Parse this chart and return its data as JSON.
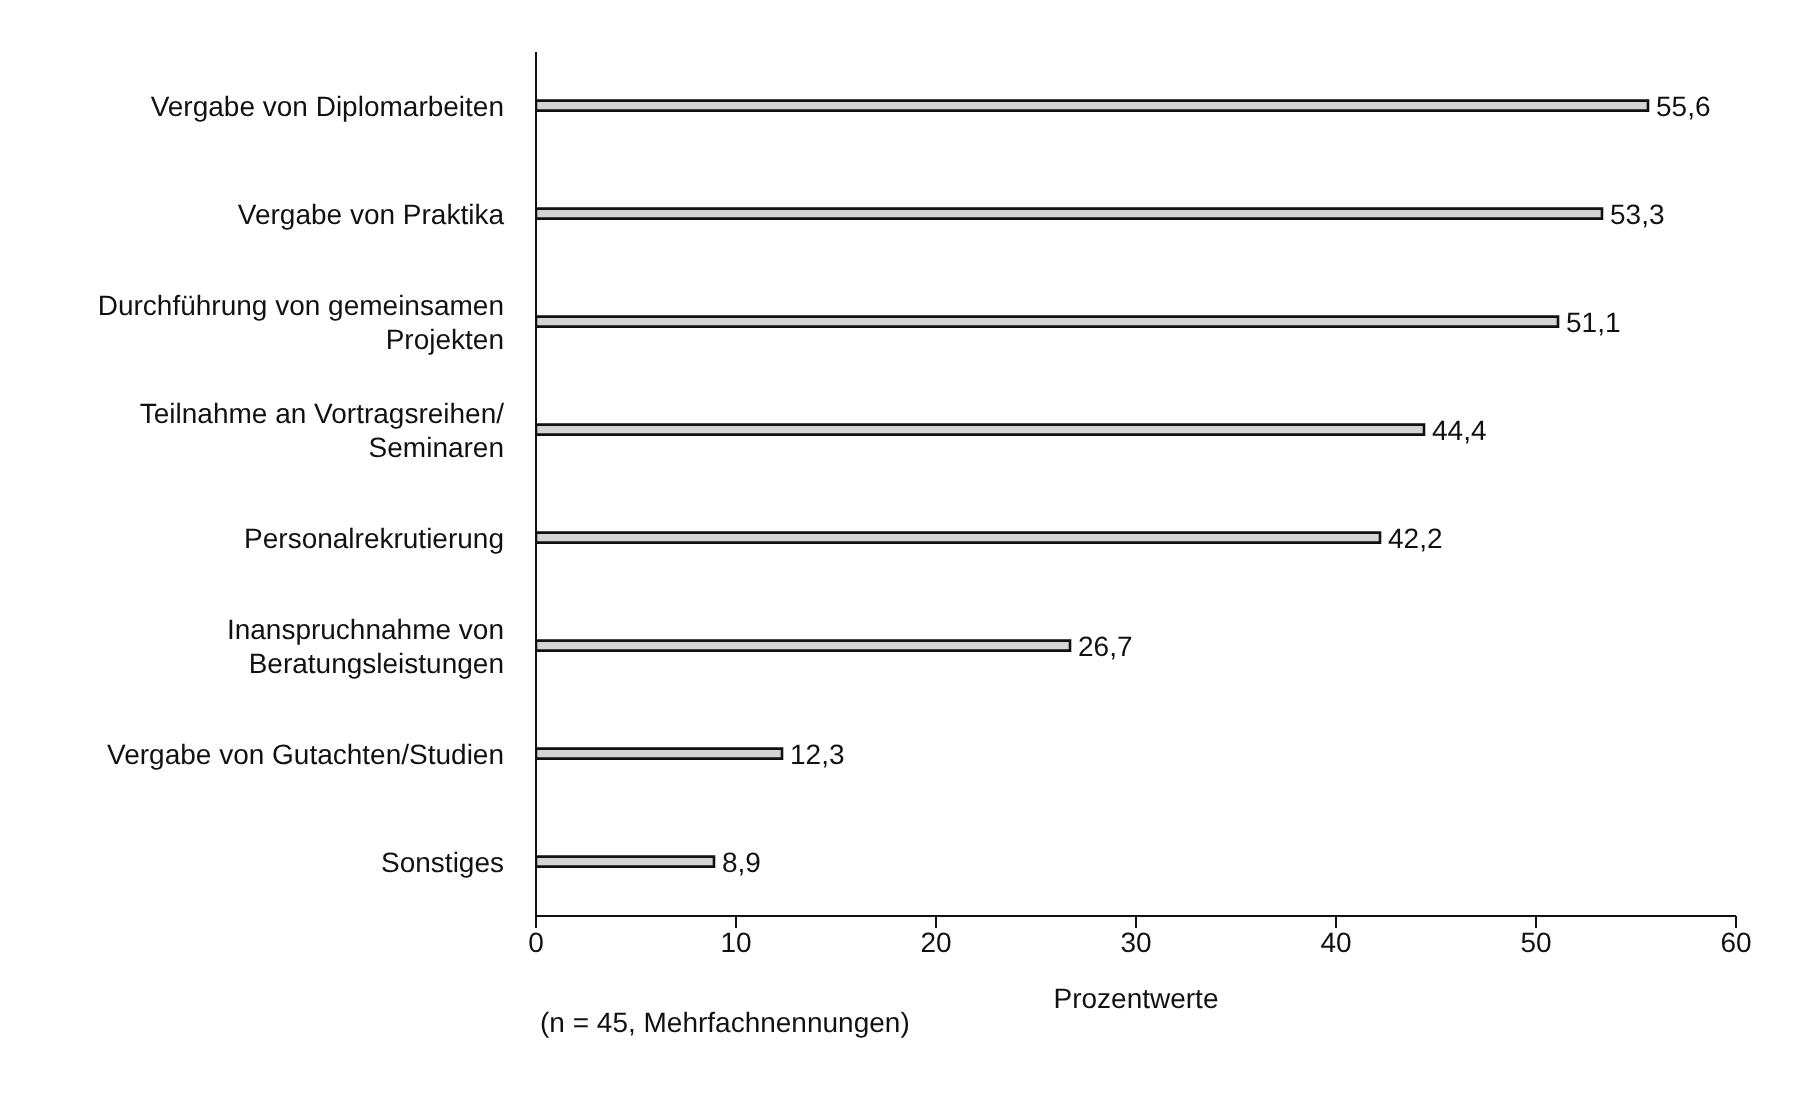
{
  "chart_data": {
    "type": "bar",
    "orientation": "horizontal",
    "xlabel": "Prozentwerte",
    "annotations": [
      "(n = 45, Mehrfachnennungen)"
    ],
    "categories": [
      "Vergabe von Diplomarbeiten",
      "Vergabe von Praktika",
      "Durchführung von gemeinsamen Projekten",
      "Teilnahme an Vortragsreihen/ Seminaren",
      "Personalrekrutierung",
      "Inanspruchnahme von Beratungsleistungen",
      "Vergabe von Gutachten/Studien",
      "Sonstiges"
    ],
    "values": [
      55.6,
      53.3,
      51.1,
      44.4,
      42.2,
      26.7,
      12.3,
      8.9
    ],
    "value_labels": [
      "55,6",
      "53,3",
      "51,1",
      "44,4",
      "42,2",
      "26,7",
      "12,3",
      "8,9"
    ],
    "color": "#d4d4d4",
    "xlim": [
      0,
      60
    ],
    "xticks": [
      0,
      10,
      20,
      30,
      40,
      50,
      60
    ],
    "grid": false,
    "legend": false
  }
}
